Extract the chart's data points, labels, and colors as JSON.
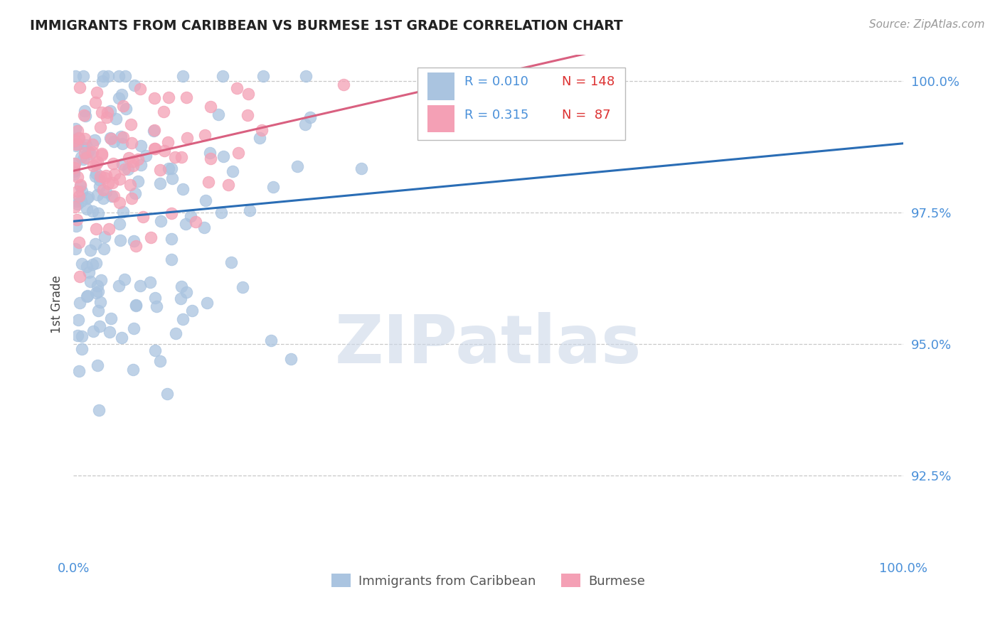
{
  "title": "IMMIGRANTS FROM CARIBBEAN VS BURMESE 1ST GRADE CORRELATION CHART",
  "source": "Source: ZipAtlas.com",
  "ylabel": "1st Grade",
  "xlim": [
    0.0,
    1.0
  ],
  "ylim": [
    0.91,
    1.005
  ],
  "yticks": [
    0.925,
    0.95,
    0.975,
    1.0
  ],
  "ytick_labels": [
    "92.5%",
    "95.0%",
    "97.5%",
    "100.0%"
  ],
  "xticks": [
    0.0,
    1.0
  ],
  "xtick_labels": [
    "0.0%",
    "100.0%"
  ],
  "legend_r1": "R = 0.010",
  "legend_n1": "N = 148",
  "legend_r2": "R = 0.315",
  "legend_n2": "N =  87",
  "series1_color": "#aac4e0",
  "series2_color": "#f4a0b5",
  "trendline1_color": "#2a6db5",
  "trendline2_color": "#d96080",
  "title_color": "#222222",
  "label_color": "#4a90d9",
  "watermark_text": "ZIPatlas",
  "watermark_color": "#ccd8e8",
  "background_color": "#ffffff",
  "seed": 42,
  "n1": 148,
  "n2": 87,
  "r1": 0.01,
  "r2": 0.315
}
